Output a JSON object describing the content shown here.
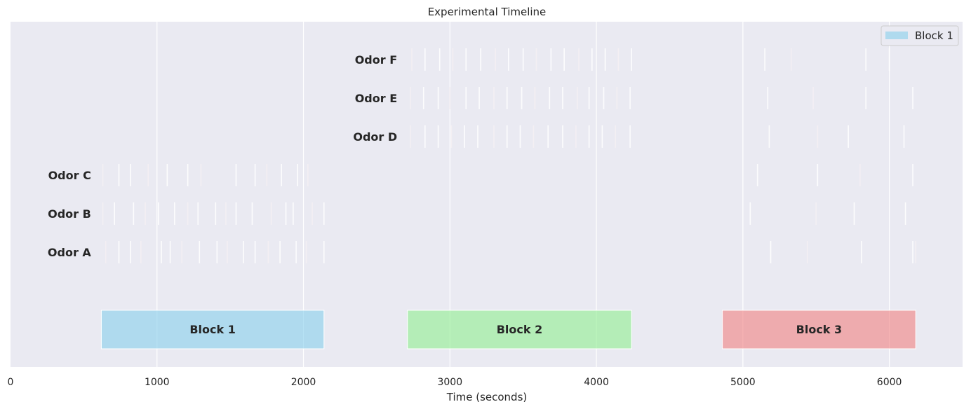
{
  "chart_data": {
    "type": "timeline",
    "title": "Experimental Timeline",
    "xlabel": "Time (seconds)",
    "xlim": [
      0,
      6500
    ],
    "xticks": [
      0,
      1000,
      2000,
      3000,
      4000,
      5000,
      6000
    ],
    "grid": true,
    "legend": {
      "placement": "top-right",
      "entries": [
        {
          "label": "Block 1",
          "color": "#87ceeb"
        }
      ]
    },
    "blocks": [
      {
        "name": "Block 1",
        "start": 620,
        "end": 2140,
        "color": "#87ceeb"
      },
      {
        "name": "Block 2",
        "start": 2710,
        "end": 4240,
        "color": "#90ee90"
      },
      {
        "name": "Block 3",
        "start": 4860,
        "end": 6180,
        "color": "#f08080"
      }
    ],
    "odors": [
      {
        "name": "Odor A",
        "label_x": 550,
        "events": [
          650,
          740,
          820,
          890,
          1030,
          1090,
          1170,
          1290,
          1410,
          1480,
          1590,
          1670,
          1760,
          1840,
          1950,
          2020,
          2140,
          5190,
          5440,
          5810,
          6160,
          6180
        ]
      },
      {
        "name": "Odor B",
        "label_x": 550,
        "events": [
          630,
          710,
          840,
          920,
          1010,
          1120,
          1210,
          1280,
          1400,
          1470,
          1540,
          1650,
          1780,
          1880,
          1930,
          2060,
          2140,
          5050,
          5500,
          5760,
          6110
        ]
      },
      {
        "name": "Odor C",
        "label_x": 550,
        "events": [
          630,
          740,
          820,
          940,
          1070,
          1210,
          1300,
          1540,
          1670,
          1750,
          1850,
          1960,
          2030,
          5100,
          5510,
          5800,
          6160
        ]
      },
      {
        "name": "Odor D",
        "label_x": 2640,
        "events": [
          2730,
          2830,
          2920,
          3010,
          3100,
          3190,
          3300,
          3390,
          3480,
          3570,
          3670,
          3770,
          3860,
          3950,
          4040,
          4130,
          4230,
          5180,
          5510,
          5720,
          6100
        ]
      },
      {
        "name": "Odor E",
        "label_x": 2640,
        "events": [
          2730,
          2820,
          2920,
          3000,
          3110,
          3200,
          3300,
          3390,
          3490,
          3580,
          3680,
          3770,
          3870,
          3950,
          4050,
          4140,
          4230,
          5170,
          5480,
          5840,
          6160
        ]
      },
      {
        "name": "Odor F",
        "label_x": 2640,
        "events": [
          2740,
          2830,
          2930,
          3020,
          3110,
          3210,
          3310,
          3400,
          3500,
          3590,
          3690,
          3780,
          3880,
          3970,
          4060,
          4150,
          4240,
          5150,
          5330,
          5840,
          6000
        ]
      }
    ]
  }
}
